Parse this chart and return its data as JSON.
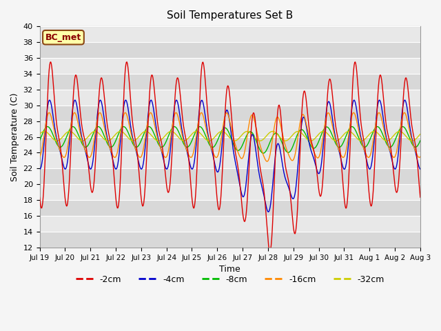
{
  "title": "Soil Temperatures Set B",
  "xlabel": "Time",
  "ylabel": "Soil Temperature (C)",
  "ylim": [
    12,
    40
  ],
  "yticks": [
    12,
    14,
    16,
    18,
    20,
    22,
    24,
    26,
    28,
    30,
    32,
    34,
    36,
    38,
    40
  ],
  "annotation": "BC_met",
  "colors": {
    "-2cm": "#dd0000",
    "-4cm": "#0000cc",
    "-8cm": "#00bb00",
    "-16cm": "#ff8800",
    "-32cm": "#cccc00"
  },
  "legend_labels": [
    "-2cm",
    "-4cm",
    "-8cm",
    "-16cm",
    "-32cm"
  ],
  "xtick_labels": [
    "Jul 19",
    "Jul 20",
    "Jul 21",
    "Jul 22",
    "Jul 23",
    "Jul 24",
    "Jul 25",
    "Jul 26",
    "Jul 27",
    "Jul 28",
    "Jul 29",
    "Jul 30",
    "Jul 31",
    "Aug 1",
    "Aug 2",
    "Aug 3"
  ],
  "figsize": [
    6.4,
    4.8
  ],
  "dpi": 100,
  "bg_color": "#f5f5f5",
  "plot_bg_color": "#e8e8e8"
}
